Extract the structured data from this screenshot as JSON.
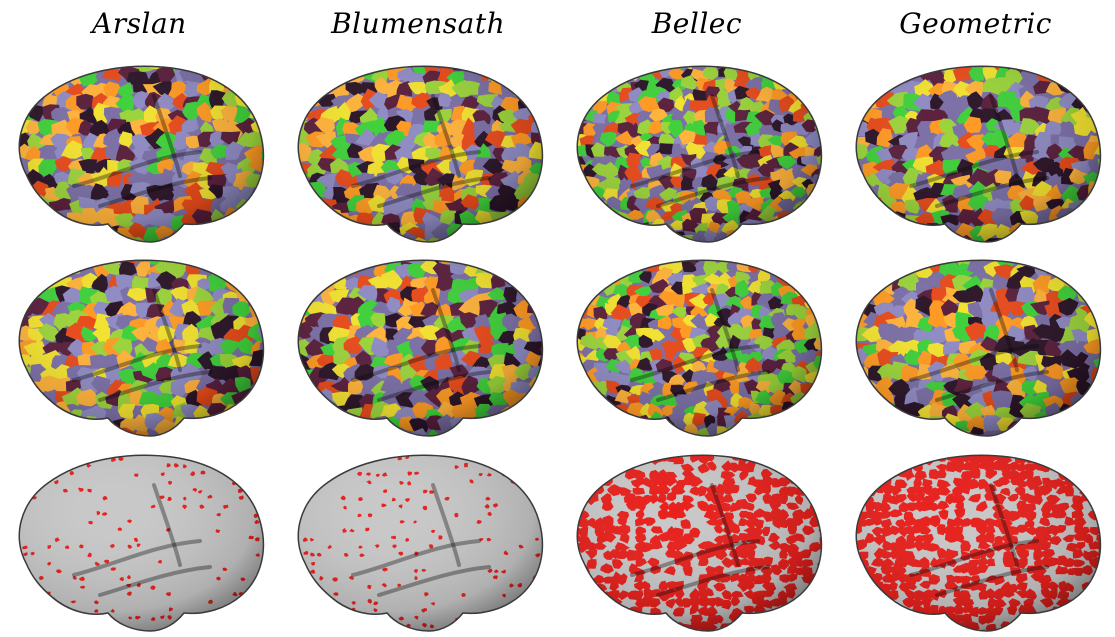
{
  "columns": [
    "Arslan",
    "Blumensath",
    "Bellec",
    "Geometric"
  ],
  "rows": [
    {
      "kind": "parcellation"
    },
    {
      "kind": "parcellation"
    },
    {
      "kind": "boundary-map"
    }
  ],
  "colors": {
    "parcels": [
      "#7b6fa6",
      "#5a1f3c",
      "#8f8bc4",
      "#3fd13a",
      "#ff9a22",
      "#f2e22f",
      "#e84a1a",
      "#9bd43a",
      "#ffb33a",
      "#2b1528"
    ],
    "boundary_red": "#e8201c",
    "surface_gray": "#c8c8c8",
    "surface_edge": "#3a3a3a"
  },
  "boundary_density": [
    0.18,
    0.2,
    0.62,
    0.72
  ]
}
